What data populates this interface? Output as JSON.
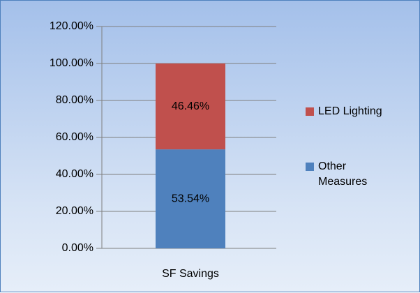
{
  "chart_data": {
    "type": "stacked_bar",
    "categories": [
      "SF Savings"
    ],
    "series": [
      {
        "name": "Other Measures",
        "color": "#4f81bd",
        "values": [
          53.54
        ],
        "value_labels": [
          "53.54%"
        ]
      },
      {
        "name": "LED Lighting",
        "color": "#c0504d",
        "values": [
          46.46
        ],
        "value_labels": [
          "46.46%"
        ]
      }
    ],
    "ylim": [
      0,
      120
    ],
    "yticks": [
      {
        "value": 0,
        "label": "0.00%"
      },
      {
        "value": 20,
        "label": "20.00%"
      },
      {
        "value": 40,
        "label": "40.00%"
      },
      {
        "value": 60,
        "label": "60.00%"
      },
      {
        "value": 80,
        "label": "80.00%"
      },
      {
        "value": 100,
        "label": "100.00%"
      },
      {
        "value": 120,
        "label": "120.00%"
      }
    ],
    "grid": true,
    "legend": "right"
  }
}
